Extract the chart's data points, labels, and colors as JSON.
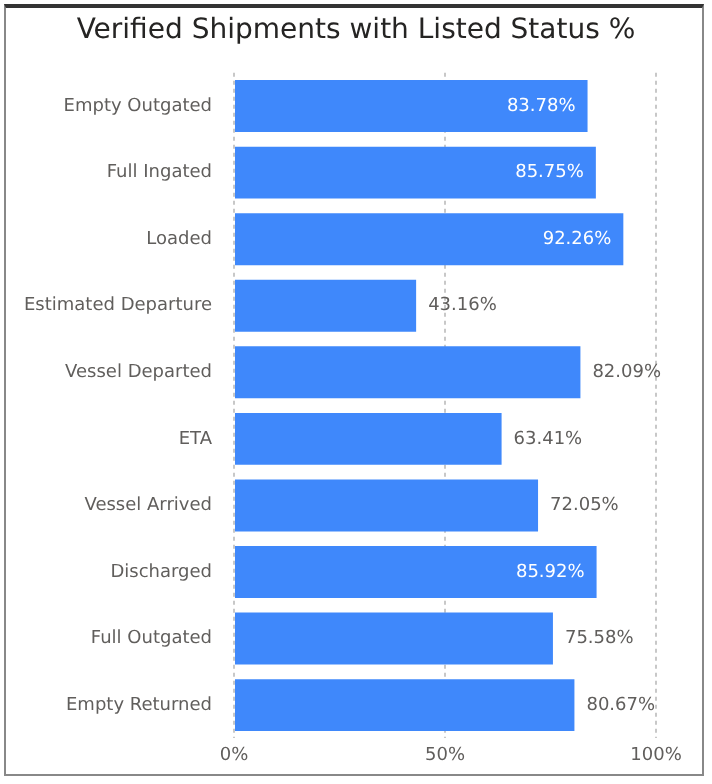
{
  "chart_data": {
    "type": "bar",
    "orientation": "horizontal",
    "title": "Verified Shipments with Listed Status %",
    "categories": [
      "Empty Outgated",
      "Full Ingated",
      "Loaded",
      "Estimated Departure",
      "Vessel Departed",
      "ETA",
      "Vessel Arrived",
      "Discharged",
      "Full Outgated",
      "Empty Returned"
    ],
    "values": [
      83.78,
      85.75,
      92.26,
      43.16,
      82.09,
      63.41,
      72.05,
      85.92,
      75.58,
      80.67
    ],
    "value_labels": [
      "83.78%",
      "85.75%",
      "92.26%",
      "43.16%",
      "82.09%",
      "63.41%",
      "72.05%",
      "85.92%",
      "75.58%",
      "80.67%"
    ],
    "color": "#3f88fb",
    "xlim": [
      0,
      100
    ],
    "xticks": [
      {
        "value": 0,
        "label": "0%"
      },
      {
        "value": 50,
        "label": "50%"
      },
      {
        "value": 100,
        "label": "100%"
      }
    ],
    "grid": "x"
  }
}
